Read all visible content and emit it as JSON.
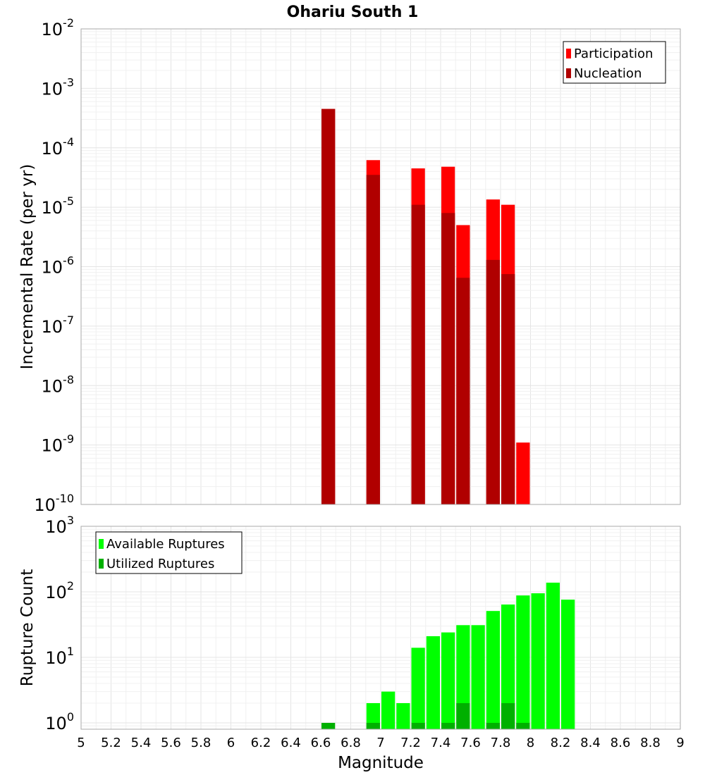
{
  "chart_data": {
    "title": "Ohariu South 1",
    "xlabel": "Magnitude",
    "x_ticks": [
      "5",
      "5.2",
      "5.4",
      "5.6",
      "5.8",
      "6",
      "6.2",
      "6.4",
      "6.6",
      "6.8",
      "7",
      "7.2",
      "7.4",
      "7.6",
      "7.8",
      "8",
      "8.2",
      "8.4",
      "8.6",
      "8.8",
      "9"
    ],
    "xlim": [
      5,
      9
    ],
    "bin_width": 0.1,
    "panels": [
      {
        "type": "bar",
        "scale": "log",
        "ylabel": "Incremental Rate (per yr)",
        "ylim": [
          1e-10,
          0.01
        ],
        "y_ticks": [
          {
            "base": "10",
            "exp": "-10"
          },
          {
            "base": "10",
            "exp": "-9"
          },
          {
            "base": "10",
            "exp": "-8"
          },
          {
            "base": "10",
            "exp": "-7"
          },
          {
            "base": "10",
            "exp": "-6"
          },
          {
            "base": "10",
            "exp": "-5"
          },
          {
            "base": "10",
            "exp": "-4"
          },
          {
            "base": "10",
            "exp": "-3"
          },
          {
            "base": "10",
            "exp": "-2"
          }
        ],
        "legend_position": "top-right",
        "series": [
          {
            "name": "Participation",
            "color": "#ff0000",
            "points": [
              [
                6.65,
                0.00045
              ],
              [
                6.95,
                6.2e-05
              ],
              [
                7.25,
                4.5e-05
              ],
              [
                7.45,
                4.8e-05
              ],
              [
                7.55,
                5e-06
              ],
              [
                7.75,
                1.35e-05
              ],
              [
                7.85,
                1.1e-05
              ],
              [
                7.95,
                1.1e-09
              ]
            ]
          },
          {
            "name": "Nucleation",
            "color": "#b00000",
            "points": [
              [
                6.65,
                0.00045
              ],
              [
                6.95,
                3.5e-05
              ],
              [
                7.25,
                1.1e-05
              ],
              [
                7.45,
                8e-06
              ],
              [
                7.55,
                6.5e-07
              ],
              [
                7.75,
                1.3e-06
              ],
              [
                7.85,
                7.5e-07
              ]
            ]
          }
        ]
      },
      {
        "type": "bar",
        "scale": "log",
        "ylabel": "Rupture Count",
        "ylim": [
          0.8,
          1000
        ],
        "y_ticks": [
          {
            "base": "10",
            "exp": "0"
          },
          {
            "base": "10",
            "exp": "1"
          },
          {
            "base": "10",
            "exp": "2"
          },
          {
            "base": "10",
            "exp": "3"
          }
        ],
        "legend_position": "top-left",
        "series": [
          {
            "name": "Available Ruptures",
            "color": "#00ff00",
            "points": [
              [
                6.95,
                2
              ],
              [
                7.05,
                3
              ],
              [
                7.15,
                2
              ],
              [
                7.25,
                14
              ],
              [
                7.35,
                21
              ],
              [
                7.45,
                24
              ],
              [
                7.55,
                31
              ],
              [
                7.65,
                31
              ],
              [
                7.75,
                51
              ],
              [
                7.85,
                64
              ],
              [
                7.95,
                88
              ],
              [
                8.05,
                95
              ],
              [
                8.15,
                138
              ],
              [
                8.25,
                76
              ]
            ]
          },
          {
            "name": "Utilized Ruptures",
            "color": "#00b000",
            "points": [
              [
                6.65,
                1
              ],
              [
                6.95,
                1
              ],
              [
                7.25,
                1
              ],
              [
                7.45,
                1
              ],
              [
                7.55,
                2
              ],
              [
                7.75,
                1
              ],
              [
                7.85,
                2
              ],
              [
                7.95,
                1
              ]
            ]
          }
        ]
      }
    ]
  }
}
